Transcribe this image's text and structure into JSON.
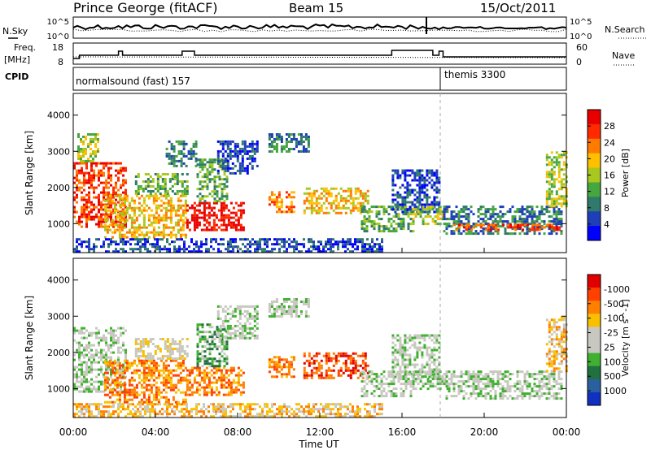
{
  "header": {
    "station": "Prince George (fitACF)",
    "beam": "Beam 15",
    "date": "15/Oct/2011"
  },
  "top_panels": {
    "nsky_label": "N.Sky",
    "nsky_ticks": [
      "10^5",
      "10^0"
    ],
    "nsearch_label": "N.Search",
    "nsearch_ticks": [
      "10^5",
      "10^0"
    ],
    "freq_label": "Freq.",
    "freq_unit": "[MHz]",
    "freq_ticks": [
      "18",
      "8"
    ],
    "nave_label": "Nave",
    "nave_ticks": [
      "60",
      "0"
    ],
    "cpid_label": "CPID",
    "cpid_segments": [
      "normalsound (fast) 157",
      "themis 3300"
    ]
  },
  "chart_data": [
    {
      "type": "heatmap",
      "name": "power-panel",
      "ylabel": "Slant Range [km]",
      "yticks": [
        1000,
        2000,
        3000,
        4000
      ],
      "ylim": [
        200,
        4600
      ],
      "xlim": [
        0,
        24
      ],
      "colorbar_label": "Power [dB]",
      "colorbar_ticks": [
        "4",
        "8",
        "12",
        "16",
        "20",
        "24",
        "28"
      ],
      "colorbar_colors": [
        "#0000ff",
        "#1f3fb8",
        "#2f7a6a",
        "#46a640",
        "#a8c820",
        "#ffc000",
        "#ff7a00",
        "#ff2a00",
        "#e80000"
      ],
      "regions": [
        {
          "t0": 0.0,
          "t1": 2.5,
          "r0": 900,
          "r1": 2700,
          "level": 7
        },
        {
          "t0": 0.2,
          "t1": 1.2,
          "r0": 2700,
          "r1": 3500,
          "level": 4
        },
        {
          "t0": 1.5,
          "t1": 5.5,
          "r0": 600,
          "r1": 1800,
          "level": 5
        },
        {
          "t0": 3.0,
          "t1": 5.5,
          "r0": 1800,
          "r1": 2400,
          "level": 3
        },
        {
          "t0": 4.5,
          "t1": 6.0,
          "r0": 2600,
          "r1": 3300,
          "level": 2
        },
        {
          "t0": 5.5,
          "t1": 8.3,
          "r0": 800,
          "r1": 1600,
          "level": 8
        },
        {
          "t0": 6.0,
          "t1": 7.5,
          "r0": 1600,
          "r1": 2800,
          "level": 3
        },
        {
          "t0": 7.0,
          "t1": 9.0,
          "r0": 2400,
          "r1": 3300,
          "level": 1
        },
        {
          "t0": 9.5,
          "t1": 10.8,
          "r0": 1300,
          "r1": 1900,
          "level": 6
        },
        {
          "t0": 9.5,
          "t1": 11.5,
          "r0": 3000,
          "r1": 3500,
          "level": 2
        },
        {
          "t0": 11.2,
          "t1": 14.3,
          "r0": 1300,
          "r1": 2000,
          "level": 5
        },
        {
          "t0": 14.0,
          "t1": 16.5,
          "r0": 800,
          "r1": 1500,
          "level": 3
        },
        {
          "t0": 15.5,
          "t1": 17.8,
          "r0": 1300,
          "r1": 2500,
          "level": 1
        },
        {
          "t0": 16.5,
          "t1": 18.2,
          "r0": 1000,
          "r1": 1500,
          "level": 4
        },
        {
          "t0": 18.0,
          "t1": 23.8,
          "r0": 700,
          "r1": 1500,
          "level": 2
        },
        {
          "t0": 18.5,
          "t1": 23.8,
          "r0": 800,
          "r1": 1000,
          "level": 7
        },
        {
          "t0": 23.0,
          "t1": 24.0,
          "r0": 1500,
          "r1": 3000,
          "level": 4
        },
        {
          "t0": 0.0,
          "t1": 15.0,
          "r0": 200,
          "r1": 600,
          "level": 1
        }
      ]
    },
    {
      "type": "heatmap",
      "name": "velocity-panel",
      "ylabel": "Slant Range [km]",
      "yticks": [
        1000,
        2000,
        3000,
        4000
      ],
      "ylim": [
        200,
        4600
      ],
      "xlim": [
        0,
        24
      ],
      "xlabel": "Time UT",
      "xticks": [
        "00:00",
        "04:00",
        "08:00",
        "12:00",
        "16:00",
        "20:00",
        "00:00"
      ],
      "colorbar_label": "Velocity [m s^-1]",
      "colorbar_ticks": [
        "1000",
        "500",
        "100",
        "25",
        "-25",
        "-100",
        "-500",
        "-1000"
      ],
      "colorbar_colors": [
        "#1030c0",
        "#2a60a0",
        "#207040",
        "#40b030",
        "#c8c8c0",
        "#c8c8c0",
        "#f8c000",
        "#ff8000",
        "#ff4000",
        "#e00000"
      ],
      "regions": [
        {
          "t0": 0.0,
          "t1": 2.5,
          "r0": 900,
          "r1": 2700,
          "level": 4
        },
        {
          "t0": 1.5,
          "t1": 5.5,
          "r0": 600,
          "r1": 1800,
          "level": 7
        },
        {
          "t0": 3.0,
          "t1": 5.5,
          "r0": 1800,
          "r1": 2400,
          "level": 5
        },
        {
          "t0": 5.5,
          "t1": 8.3,
          "r0": 800,
          "r1": 1600,
          "level": 7
        },
        {
          "t0": 6.0,
          "t1": 7.5,
          "r0": 1600,
          "r1": 2800,
          "level": 3
        },
        {
          "t0": 7.0,
          "t1": 9.0,
          "r0": 2400,
          "r1": 3300,
          "level": 4
        },
        {
          "t0": 9.5,
          "t1": 10.8,
          "r0": 1300,
          "r1": 1900,
          "level": 7
        },
        {
          "t0": 9.5,
          "t1": 11.5,
          "r0": 3000,
          "r1": 3500,
          "level": 4
        },
        {
          "t0": 11.2,
          "t1": 14.3,
          "r0": 1300,
          "r1": 2000,
          "level": 8
        },
        {
          "t0": 14.0,
          "t1": 16.5,
          "r0": 800,
          "r1": 1500,
          "level": 4
        },
        {
          "t0": 15.5,
          "t1": 17.8,
          "r0": 1300,
          "r1": 2500,
          "level": 4
        },
        {
          "t0": 16.5,
          "t1": 18.2,
          "r0": 1000,
          "r1": 1500,
          "level": 4
        },
        {
          "t0": 18.0,
          "t1": 23.8,
          "r0": 700,
          "r1": 1500,
          "level": 4
        },
        {
          "t0": 23.0,
          "t1": 24.0,
          "r0": 1500,
          "r1": 3000,
          "level": 6
        },
        {
          "t0": 0.0,
          "t1": 15.0,
          "r0": 200,
          "r1": 600,
          "level": 6
        }
      ]
    }
  ]
}
